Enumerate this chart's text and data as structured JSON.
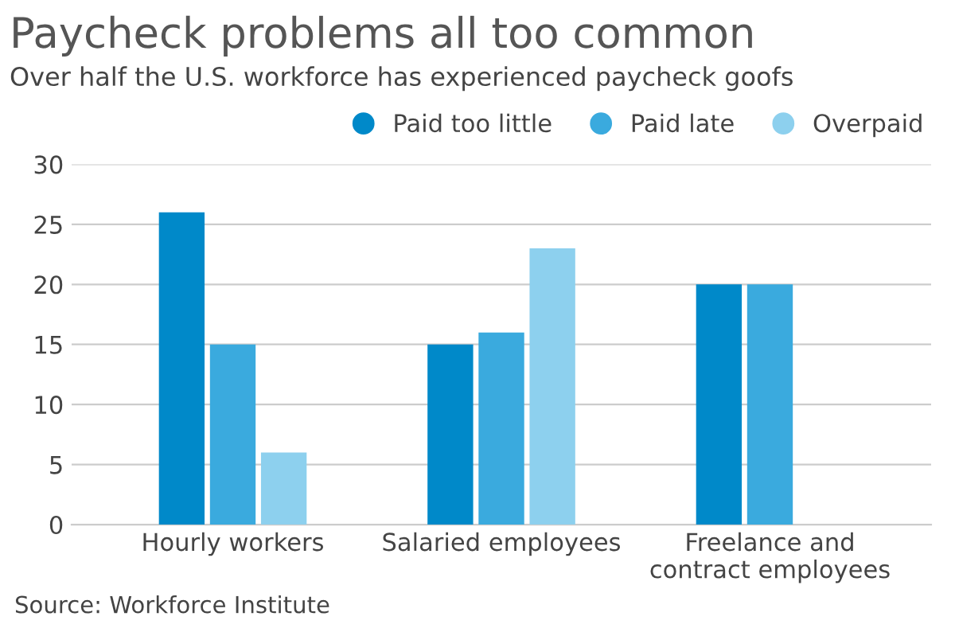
{
  "chart_data": {
    "type": "bar",
    "title": "Paycheck problems all too common",
    "subtitle": "Over half the U.S. workforce has experienced paycheck goofs",
    "categories": [
      "Hourly workers",
      "Salaried employees",
      "Freelance and\ncontract employees"
    ],
    "series": [
      {
        "name": "Paid too little",
        "color": "#0089c9",
        "values": [
          26,
          15,
          20
        ]
      },
      {
        "name": "Paid late",
        "color": "#3aaade",
        "values": [
          15,
          16,
          20
        ]
      },
      {
        "name": "Overpaid",
        "color": "#8dd0ee",
        "values": [
          6,
          23,
          null
        ]
      }
    ],
    "ylim": [
      0,
      30
    ],
    "yticks": [
      0,
      5,
      10,
      15,
      20,
      25,
      30
    ],
    "grid": "y",
    "legend": "top right",
    "annotations": [
      "Source: Workforce Institute"
    ]
  }
}
